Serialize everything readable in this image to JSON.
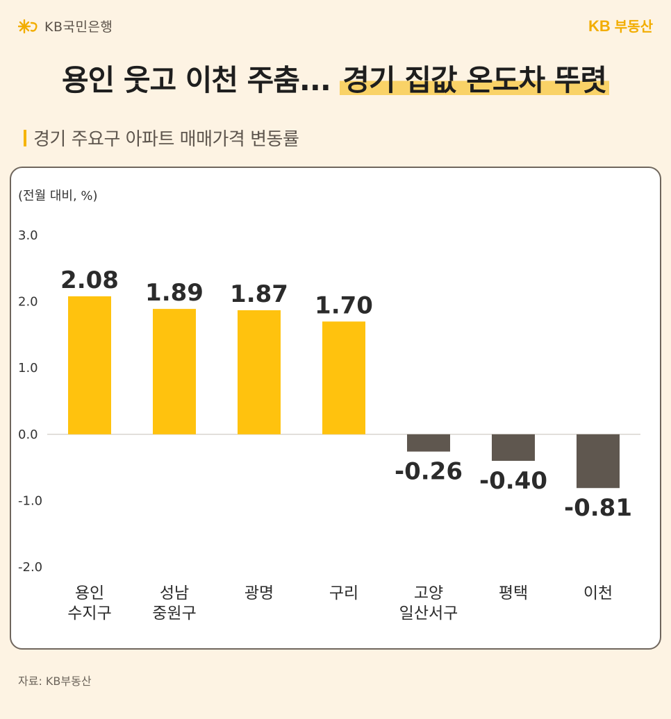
{
  "header": {
    "bank_name": "KB국민은행",
    "brand_kb": "KB",
    "brand_name": "부동산"
  },
  "title": {
    "part1": "용인 웃고 이천 주춤... ",
    "highlight": "경기 집값 온도차 뚜렷"
  },
  "subtitle": "경기 주요구 아파트 매매가격 변동률",
  "source": "자료: KB부동산",
  "colors": {
    "positive": "#ffc20e",
    "negative": "#5f574f",
    "accent": "#f2ad00",
    "background": "#fdf3e3"
  },
  "chart_data": {
    "type": "bar",
    "unit_label": "(전월 대비, %)",
    "categories": [
      [
        "용인",
        "수지구"
      ],
      [
        "성남",
        "중원구"
      ],
      [
        "광명"
      ],
      [
        "구리"
      ],
      [
        "고양",
        "일산서구"
      ],
      [
        "평택"
      ],
      [
        "이천"
      ]
    ],
    "values": [
      2.08,
      1.89,
      1.87,
      1.7,
      -0.26,
      -0.4,
      -0.81
    ],
    "value_labels": [
      "2.08",
      "1.89",
      "1.87",
      "1.70",
      "-0.26",
      "-0.40",
      "-0.81"
    ],
    "ylim": [
      -2.0,
      3.0
    ],
    "yticks": [
      "3.0",
      "2.0",
      "1.0",
      "0.0",
      "-1.0",
      "-2.0"
    ],
    "ytick_values": [
      3,
      2,
      1,
      0,
      -1,
      -2
    ],
    "grid": false,
    "zero_line": true
  }
}
